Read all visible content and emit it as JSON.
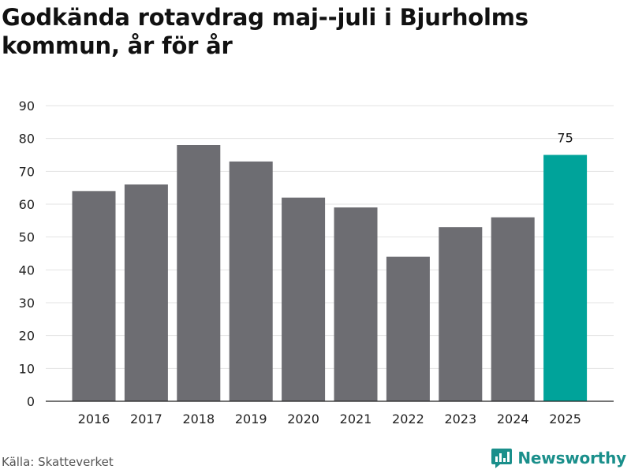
{
  "header": {
    "title": "Godkända rotavdrag maj--juli i Bjurholms kommun, år för år"
  },
  "chart_data": {
    "type": "bar",
    "title": "Godkända rotavdrag maj--juli i Bjurholms kommun, år för år",
    "xlabel": "",
    "ylabel": "",
    "categories": [
      "2016",
      "2017",
      "2018",
      "2019",
      "2020",
      "2021",
      "2022",
      "2023",
      "2024",
      "2025"
    ],
    "values": [
      64,
      66,
      78,
      73,
      62,
      59,
      44,
      53,
      56,
      75
    ],
    "ylim": [
      0,
      90
    ],
    "yticks": [
      0,
      10,
      20,
      30,
      40,
      50,
      60,
      70,
      80,
      90
    ],
    "grid": true,
    "bar_colors": [
      "#6d6d72",
      "#6d6d72",
      "#6d6d72",
      "#6d6d72",
      "#6d6d72",
      "#6d6d72",
      "#6d6d72",
      "#6d6d72",
      "#6d6d72",
      "#00a39a"
    ],
    "data_labels": [
      {
        "category": "2025",
        "text": "75"
      }
    ]
  },
  "footer": {
    "source": "Källa: Skatteverket",
    "brand": "Newsworthy",
    "brand_icon": "newsworthy-chart-icon",
    "brand_color": "#1a8f8b"
  }
}
